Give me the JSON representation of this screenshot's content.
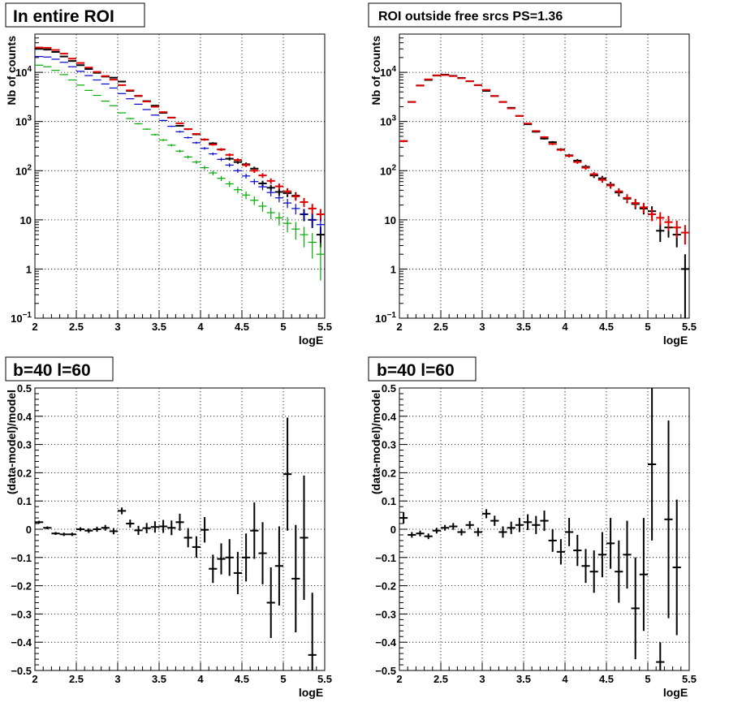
{
  "chart_data": [
    {
      "type": "histogram-errorbar",
      "title": "In entire ROI",
      "xlabel": "logE",
      "ylabel": "Nb of counts",
      "xlim": [
        2,
        5.5
      ],
      "ylim": [
        0.1,
        60000
      ],
      "yscale": "log",
      "grid": true,
      "xticks": [
        "2",
        "2.5",
        "3",
        "3.5",
        "4",
        "4.5",
        "5",
        "5.5"
      ],
      "yticks": [
        {
          "value": 0.1,
          "label": "10",
          "sup": "−1"
        },
        {
          "value": 1,
          "label": "1",
          "sup": ""
        },
        {
          "value": 10,
          "label": "10",
          "sup": ""
        },
        {
          "value": 100,
          "label": "10",
          "sup": "2"
        },
        {
          "value": 1000,
          "label": "10",
          "sup": "3"
        },
        {
          "value": 10000,
          "label": "10",
          "sup": "4"
        }
      ],
      "x": [
        2.05,
        2.15,
        2.25,
        2.35,
        2.45,
        2.55,
        2.65,
        2.75,
        2.85,
        2.95,
        3.05,
        3.15,
        3.25,
        3.35,
        3.45,
        3.55,
        3.65,
        3.75,
        3.85,
        3.95,
        4.05,
        4.15,
        4.25,
        4.35,
        4.45,
        4.55,
        4.65,
        4.75,
        4.85,
        4.95,
        5.05,
        5.15,
        5.25,
        5.35,
        5.45
      ],
      "series": [
        {
          "name": "",
          "color": "#000000",
          "values": [
            30000,
            29000,
            26000,
            21000,
            17000,
            14000,
            11700,
            9800,
            8200,
            7800,
            6500,
            4200,
            3300,
            2600,
            2100,
            1500,
            1200,
            820,
            700,
            550,
            430,
            360,
            270,
            175,
            150,
            135,
            110,
            55,
            45,
            37,
            35,
            31,
            13,
            10,
            5
          ]
        },
        {
          "name": "",
          "color": "#dd0000",
          "values": [
            32000,
            31500,
            28500,
            24000,
            19000,
            15500,
            12500,
            10200,
            8400,
            7100,
            5500,
            4300,
            3350,
            2550,
            2000,
            1550,
            1200,
            920,
            700,
            560,
            430,
            340,
            270,
            210,
            165,
            130,
            100,
            80,
            62,
            48,
            38,
            30,
            23,
            17,
            13
          ]
        },
        {
          "name": "",
          "color": "#0000cc",
          "values": [
            21000,
            20500,
            18500,
            16000,
            13000,
            10500,
            8600,
            7000,
            5800,
            4800,
            3700,
            2900,
            2250,
            1750,
            1350,
            1050,
            800,
            620,
            470,
            370,
            285,
            220,
            170,
            130,
            100,
            78,
            60,
            47,
            36,
            28,
            22,
            17,
            13,
            10,
            8
          ]
        },
        {
          "name": "",
          "color": "#00aa00",
          "values": [
            14000,
            13000,
            11000,
            9000,
            7000,
            5500,
            4300,
            3400,
            2600,
            2100,
            1500,
            1150,
            900,
            700,
            540,
            420,
            330,
            250,
            190,
            150,
            115,
            90,
            70,
            54,
            41,
            32,
            25,
            19,
            14,
            11,
            8.5,
            6.5,
            5,
            3.5,
            2
          ]
        }
      ]
    },
    {
      "type": "histogram-errorbar",
      "title": "ROI outside free srcs PS=1.36",
      "xlabel": "logE",
      "ylabel": "Nb of counts",
      "xlim": [
        2,
        5.5
      ],
      "ylim": [
        0.1,
        60000
      ],
      "yscale": "log",
      "grid": true,
      "xticks": [
        "2",
        "2.5",
        "3",
        "3.5",
        "4",
        "4.5",
        "5",
        "5.5"
      ],
      "yticks": [
        {
          "value": 0.1,
          "label": "10",
          "sup": "−1"
        },
        {
          "value": 1,
          "label": "1",
          "sup": ""
        },
        {
          "value": 10,
          "label": "10",
          "sup": ""
        },
        {
          "value": 100,
          "label": "10",
          "sup": "2"
        },
        {
          "value": 1000,
          "label": "10",
          "sup": "3"
        },
        {
          "value": 10000,
          "label": "10",
          "sup": "4"
        }
      ],
      "x": [
        2.05,
        2.15,
        2.25,
        2.35,
        2.45,
        2.55,
        2.65,
        2.75,
        2.85,
        2.95,
        3.05,
        3.15,
        3.25,
        3.35,
        3.45,
        3.55,
        3.65,
        3.75,
        3.85,
        3.95,
        4.05,
        4.15,
        4.25,
        4.35,
        4.45,
        4.55,
        4.65,
        4.75,
        4.85,
        4.95,
        5.05,
        5.15,
        5.25,
        5.35,
        5.45
      ],
      "series": [
        {
          "name": "",
          "color": "#000000",
          "values": [
            400,
            2500,
            5400,
            7000,
            8600,
            9000,
            8500,
            7700,
            6600,
            5500,
            4200,
            3300,
            2500,
            1900,
            1300,
            880,
            620,
            450,
            380,
            270,
            205,
            160,
            120,
            80,
            70,
            52,
            36,
            27,
            21,
            17,
            15,
            6,
            7,
            5,
            1
          ]
        },
        {
          "name": "",
          "color": "#dd0000",
          "values": [
            400,
            2500,
            5400,
            7200,
            8700,
            8800,
            8400,
            7600,
            6600,
            5500,
            4400,
            3300,
            2500,
            1850,
            1300,
            910,
            640,
            480,
            350,
            265,
            200,
            150,
            115,
            85,
            65,
            50,
            38,
            28,
            22,
            18,
            13,
            11,
            9,
            7,
            5.5
          ]
        }
      ]
    },
    {
      "type": "errorbar",
      "title": "b=40 l=60",
      "xlabel": "logE",
      "ylabel": "(data-model)/model",
      "xlim": [
        2,
        5.5
      ],
      "ylim": [
        -0.5,
        0.5
      ],
      "grid": true,
      "xticks": [
        "2",
        "2.5",
        "3",
        "3.5",
        "4",
        "4.5",
        "5",
        "5.5"
      ],
      "yticks": [
        "−0.5",
        "−0.4",
        "−0.3",
        "−0.2",
        "−0.1",
        "0",
        "0.1",
        "0.2",
        "0.3",
        "0.4",
        "0.5"
      ],
      "x": [
        2.05,
        2.15,
        2.25,
        2.35,
        2.45,
        2.55,
        2.65,
        2.75,
        2.85,
        2.95,
        3.05,
        3.15,
        3.25,
        3.35,
        3.45,
        3.55,
        3.65,
        3.75,
        3.85,
        3.95,
        4.05,
        4.15,
        4.25,
        4.35,
        4.45,
        4.55,
        4.65,
        4.75,
        4.85,
        4.95,
        5.05,
        5.15,
        5.25,
        5.35,
        5.45
      ],
      "values": [
        0.025,
        0.005,
        -0.015,
        -0.018,
        -0.018,
        0.0,
        -0.005,
        0.0,
        0.005,
        -0.007,
        0.065,
        0.02,
        -0.004,
        0.004,
        0.008,
        0.01,
        0.005,
        0.025,
        -0.03,
        -0.063,
        -0.002,
        -0.14,
        -0.105,
        -0.1,
        -0.155,
        -0.1,
        -0.005,
        -0.085,
        -0.26,
        -0.13,
        0.195,
        -0.175,
        -0.03,
        -0.445,
        null
      ],
      "errors": [
        0.005,
        0.005,
        0.005,
        0.006,
        0.006,
        0.007,
        0.008,
        0.009,
        0.01,
        0.011,
        0.012,
        0.014,
        0.016,
        0.018,
        0.02,
        0.023,
        0.026,
        0.03,
        0.034,
        0.038,
        0.045,
        0.05,
        0.055,
        0.065,
        0.075,
        0.085,
        0.1,
        0.11,
        0.125,
        0.14,
        0.2,
        0.19,
        0.22,
        0.22,
        0
      ],
      "xerr": 0.05
    },
    {
      "type": "errorbar",
      "title": "b=40 l=60",
      "xlabel": "logE",
      "ylabel": "(data-model)/model",
      "xlim": [
        2,
        5.5
      ],
      "ylim": [
        -0.5,
        0.5
      ],
      "grid": true,
      "xticks": [
        "2",
        "2.5",
        "3",
        "3.5",
        "4",
        "4.5",
        "5",
        "5.5"
      ],
      "yticks": [
        "−0.5",
        "−0.4",
        "−0.3",
        "−0.2",
        "−0.1",
        "0",
        "0.1",
        "0.2",
        "0.3",
        "0.4",
        "0.5"
      ],
      "x": [
        2.05,
        2.15,
        2.25,
        2.35,
        2.45,
        2.55,
        2.65,
        2.75,
        2.85,
        2.95,
        3.05,
        3.15,
        3.25,
        3.35,
        3.45,
        3.55,
        3.65,
        3.75,
        3.85,
        3.95,
        4.05,
        4.15,
        4.25,
        4.35,
        4.45,
        4.55,
        4.65,
        4.75,
        4.85,
        4.95,
        5.05,
        5.15,
        5.25,
        5.35,
        5.45
      ],
      "values": [
        0.04,
        -0.02,
        -0.015,
        -0.025,
        -0.005,
        0.005,
        0.01,
        -0.01,
        0.015,
        -0.01,
        0.055,
        0.03,
        -0.01,
        0.005,
        0.015,
        0.025,
        0.015,
        0.03,
        -0.04,
        -0.08,
        -0.01,
        -0.075,
        -0.13,
        -0.15,
        -0.09,
        -0.05,
        -0.15,
        -0.09,
        -0.28,
        -0.16,
        0.23,
        -0.47,
        0.035,
        -0.135,
        null
      ],
      "errors": [
        0.02,
        0.01,
        0.01,
        0.01,
        0.01,
        0.01,
        0.012,
        0.012,
        0.014,
        0.015,
        0.016,
        0.018,
        0.02,
        0.022,
        0.025,
        0.028,
        0.032,
        0.036,
        0.04,
        0.045,
        0.05,
        0.055,
        0.06,
        0.075,
        0.08,
        0.09,
        0.11,
        0.12,
        0.18,
        0.2,
        0.27,
        0.07,
        0.35,
        0.24,
        0
      ],
      "xerr": 0.05
    }
  ]
}
